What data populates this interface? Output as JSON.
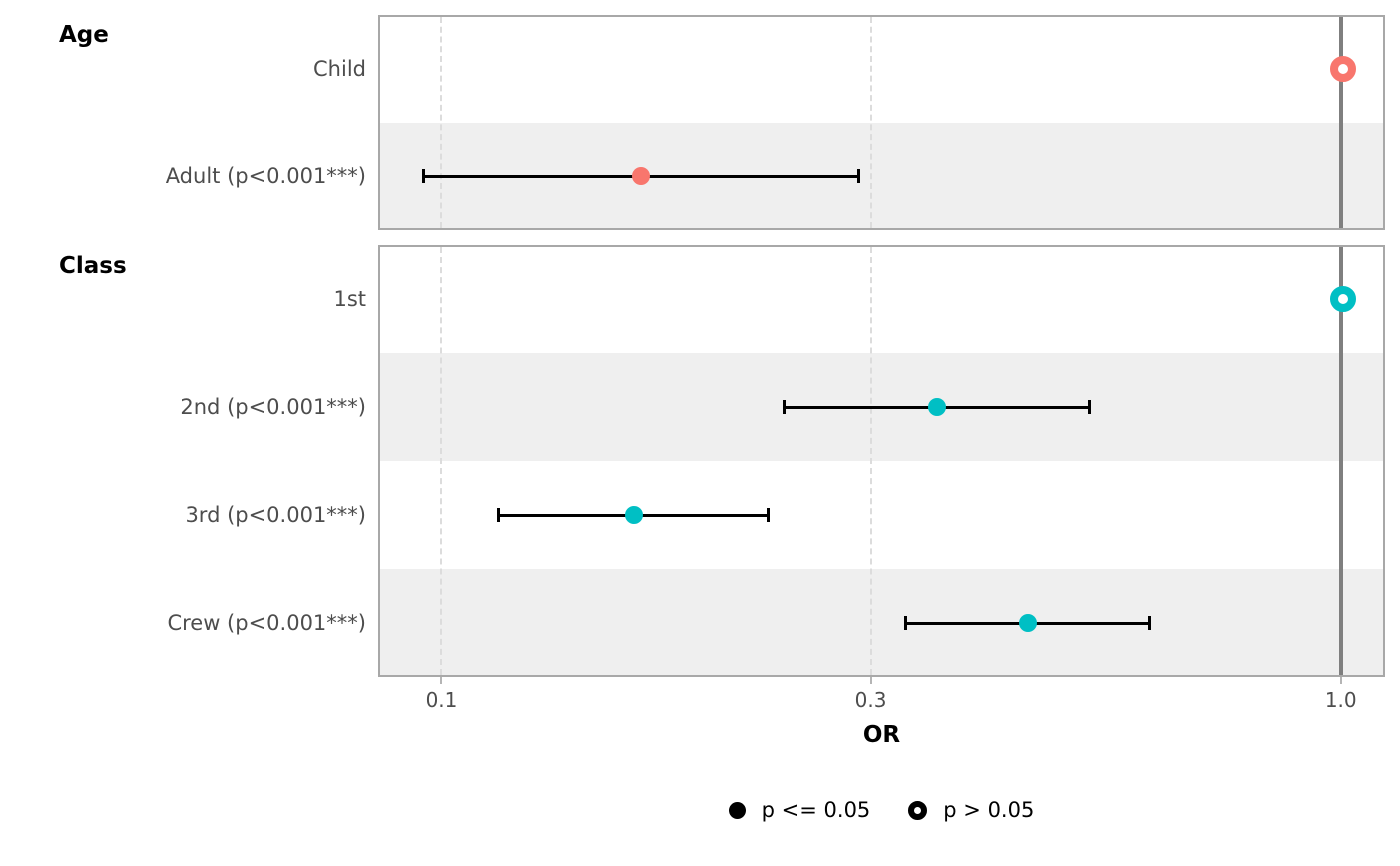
{
  "chart_data": {
    "type": "forest",
    "title": "",
    "xlabel": "OR",
    "x_scale": "log10",
    "x_ticks": [
      0.1,
      0.3,
      1.0
    ],
    "x_tick_labels": [
      "0.1",
      "0.3",
      "1.0"
    ],
    "xlim": [
      0.085,
      1.12
    ],
    "reference_value": 1.0,
    "grid": "vertical-dashed-at-ticks",
    "legend_position": "bottom",
    "groups": [
      {
        "name": "Age",
        "color": "#F8766D",
        "rows": [
          {
            "label": "Child",
            "or": 1.0,
            "ci_low": null,
            "ci_high": null,
            "reference": true,
            "significant": false
          },
          {
            "label": "Adult (p<0.001***)",
            "or": 0.166,
            "ci_low": 0.095,
            "ci_high": 0.29,
            "reference": false,
            "significant": true
          }
        ]
      },
      {
        "name": "Class",
        "color": "#00BFC4",
        "rows": [
          {
            "label": "1st",
            "or": 1.0,
            "ci_low": null,
            "ci_high": null,
            "reference": true,
            "significant": false
          },
          {
            "label": "2nd (p<0.001***)",
            "or": 0.354,
            "ci_low": 0.239,
            "ci_high": 0.524,
            "reference": false,
            "significant": true
          },
          {
            "label": "3rd (p<0.001***)",
            "or": 0.163,
            "ci_low": 0.115,
            "ci_high": 0.23,
            "reference": false,
            "significant": true
          },
          {
            "label": "Crew (p<0.001***)",
            "or": 0.447,
            "ci_low": 0.326,
            "ci_high": 0.61,
            "reference": false,
            "significant": true
          }
        ]
      }
    ],
    "legend": [
      {
        "label": "p <= 0.05",
        "marker": "filled"
      },
      {
        "label": "p > 0.05",
        "marker": "open"
      }
    ],
    "colors": {
      "age_series": "#F8766D",
      "class_series": "#00BFC4",
      "stripe": "#EFEFEF",
      "panel_border": "#A8A8A8",
      "reference_line": "#7F7F7F",
      "gridline": "#DCDCDC",
      "ci": "#000000",
      "legend_marker": "#000000",
      "label_text": "#4D4D4D"
    }
  }
}
